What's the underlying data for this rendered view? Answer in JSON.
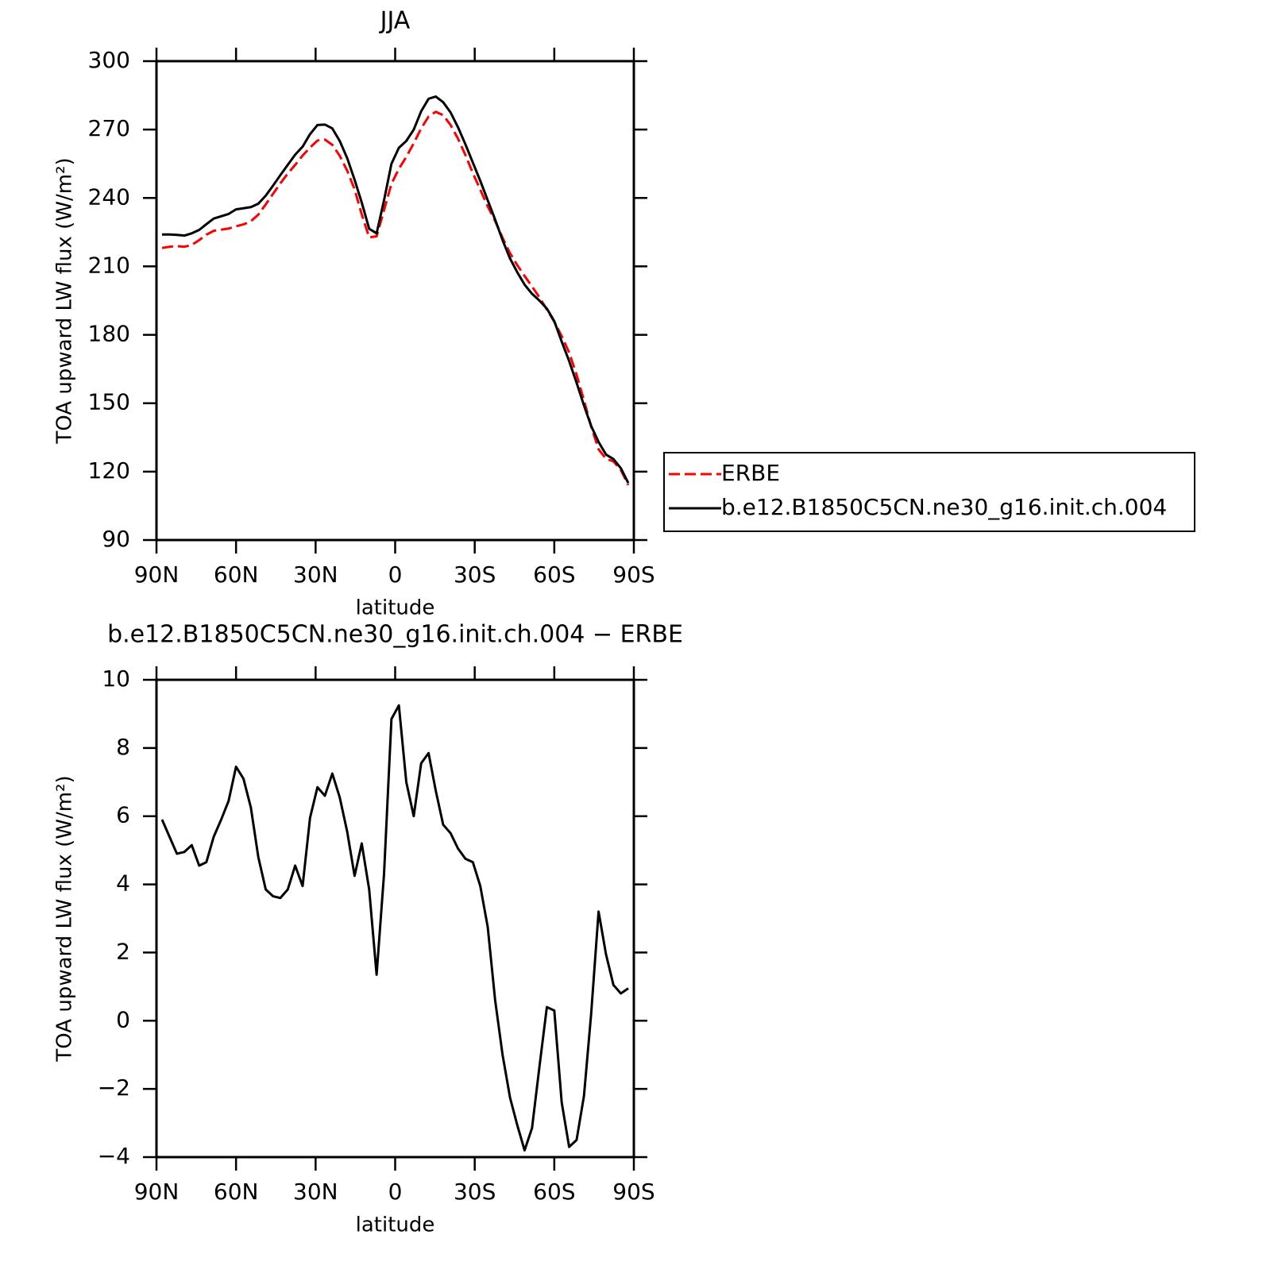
{
  "chart_data": [
    {
      "type": "line",
      "title": "JJA",
      "xlabel": "latitude",
      "ylabel": "TOA upward LW flux (W/m²)",
      "x": [
        87.9,
        85.1,
        82.3,
        79.5,
        76.7,
        73.9,
        71.2,
        68.4,
        65.6,
        62.8,
        60.0,
        57.2,
        54.4,
        51.6,
        48.8,
        46.0,
        43.3,
        40.5,
        37.7,
        34.9,
        32.1,
        29.3,
        26.5,
        23.7,
        20.9,
        18.1,
        15.3,
        12.6,
        9.8,
        7.0,
        4.2,
        1.4,
        -1.4,
        -4.2,
        -7.0,
        -9.8,
        -12.6,
        -15.3,
        -18.1,
        -20.9,
        -23.7,
        -26.5,
        -29.3,
        -32.1,
        -34.9,
        -37.7,
        -40.5,
        -43.3,
        -46.0,
        -48.8,
        -51.6,
        -54.4,
        -57.2,
        -60.0,
        -62.8,
        -65.6,
        -68.4,
        -71.2,
        -73.9,
        -76.7,
        -79.5,
        -82.3,
        -85.1,
        -87.9
      ],
      "series": [
        {
          "name": "ERBE",
          "color": "#ff0000",
          "linestyle": "dashed",
          "values": [
            218.1,
            218.6,
            218.9,
            218.6,
            219.4,
            221.5,
            223.9,
            225.6,
            226.1,
            226.6,
            227.6,
            228.4,
            229.8,
            232.7,
            237.2,
            241.9,
            246.4,
            250.7,
            254.5,
            258.6,
            262.1,
            265.2,
            265.6,
            263.3,
            258.5,
            252.0,
            243.8,
            232.8,
            222.7,
            223.2,
            234.7,
            246.2,
            252.8,
            258.0,
            264.0,
            270.5,
            275.7,
            277.8,
            276.3,
            272.0,
            266.0,
            258.8,
            250.9,
            243.6,
            236.3,
            229.9,
            222.5,
            215.8,
            210.6,
            205.8,
            201.2,
            196.4,
            191.1,
            185.7,
            179.4,
            172.2,
            162.5,
            151.2,
            139.8,
            129.8,
            125.6,
            124.5,
            120.7,
            114.1
          ]
        },
        {
          "name": "b.e12.B1850C5CN.ne30_g16.init.ch.004",
          "color": "#000000",
          "linestyle": "solid",
          "values": [
            224,
            224,
            223.8,
            223.5,
            224.5,
            226,
            228.5,
            231,
            232,
            233,
            235,
            235.5,
            236,
            237.5,
            241,
            245.5,
            250,
            254.5,
            259,
            262.5,
            268,
            272,
            272.2,
            270.5,
            265,
            257.5,
            248,
            238,
            226.5,
            224.5,
            239,
            255,
            262,
            265,
            270,
            278,
            283.5,
            284.5,
            282,
            277.5,
            271,
            263.5,
            255.5,
            247.5,
            239,
            230.5,
            221.5,
            213.5,
            207.5,
            202,
            198,
            195,
            191.5,
            186,
            177,
            168.5,
            159,
            149,
            140,
            133,
            127.5,
            125.5,
            121.5,
            115
          ]
        }
      ],
      "xlim": [
        90,
        -90
      ],
      "xticks": [
        {
          "value": 90,
          "label": "90N"
        },
        {
          "value": 60,
          "label": "60N"
        },
        {
          "value": 30,
          "label": "30N"
        },
        0,
        {
          "value": -30,
          "label": "30S"
        },
        {
          "value": -60,
          "label": "60S"
        },
        {
          "value": -90,
          "label": "90S"
        }
      ],
      "ylim": [
        90,
        300
      ],
      "yticks": [
        90,
        120,
        150,
        180,
        210,
        240,
        270,
        300
      ],
      "legend": "right"
    },
    {
      "type": "line",
      "title": "b.e12.B1850C5CN.ne30_g16.init.ch.004 − ERBE",
      "xlabel": "latitude",
      "ylabel": "TOA upward LW flux (W/m²)",
      "x": [
        87.9,
        85.1,
        82.3,
        79.5,
        76.7,
        73.9,
        71.2,
        68.4,
        65.6,
        62.8,
        60.0,
        57.2,
        54.4,
        51.6,
        48.8,
        46.0,
        43.3,
        40.5,
        37.7,
        34.9,
        32.1,
        29.3,
        26.5,
        23.7,
        20.9,
        18.1,
        15.3,
        12.6,
        9.8,
        7.0,
        4.2,
        1.4,
        -1.4,
        -4.2,
        -7.0,
        -9.8,
        -12.6,
        -15.3,
        -18.1,
        -20.9,
        -23.7,
        -26.5,
        -29.3,
        -32.1,
        -34.9,
        -37.7,
        -40.5,
        -43.3,
        -46.0,
        -48.8,
        -51.6,
        -54.4,
        -57.2,
        -60.0,
        -62.8,
        -65.6,
        -68.4,
        -71.2,
        -73.9,
        -76.7,
        -79.5,
        -82.3,
        -85.1,
        -87.9
      ],
      "values": [
        5.9,
        5.4,
        4.9,
        4.95,
        5.15,
        4.55,
        4.65,
        5.4,
        5.9,
        6.45,
        7.45,
        7.1,
        6.25,
        4.8,
        3.85,
        3.65,
        3.6,
        3.85,
        4.55,
        3.95,
        5.95,
        6.85,
        6.6,
        7.25,
        6.55,
        5.55,
        4.25,
        5.2,
        3.85,
        1.35,
        4.3,
        8.85,
        9.25,
        7.0,
        6.0,
        7.55,
        7.85,
        6.75,
        5.75,
        5.5,
        5.05,
        4.75,
        4.65,
        3.95,
        2.75,
        0.6,
        -1.0,
        -2.25,
        -3.05,
        -3.8,
        -3.15,
        -1.35,
        0.4,
        0.3,
        -2.4,
        -3.7,
        -3.5,
        -2.2,
        0.2,
        3.2,
        1.95,
        1.05,
        0.8,
        0.95
      ],
      "color": "#000000",
      "xlim": [
        90,
        -90
      ],
      "xticks": [
        {
          "value": 90,
          "label": "90N"
        },
        {
          "value": 60,
          "label": "60N"
        },
        {
          "value": 30,
          "label": "30N"
        },
        0,
        {
          "value": -30,
          "label": "30S"
        },
        {
          "value": -60,
          "label": "60S"
        },
        {
          "value": -90,
          "label": "90S"
        }
      ],
      "ylim": [
        -4,
        10
      ],
      "yticks": [
        {
          "value": -4,
          "label": "−4"
        },
        {
          "value": -2,
          "label": "−2"
        },
        0,
        2,
        4,
        6,
        8,
        10
      ]
    }
  ]
}
